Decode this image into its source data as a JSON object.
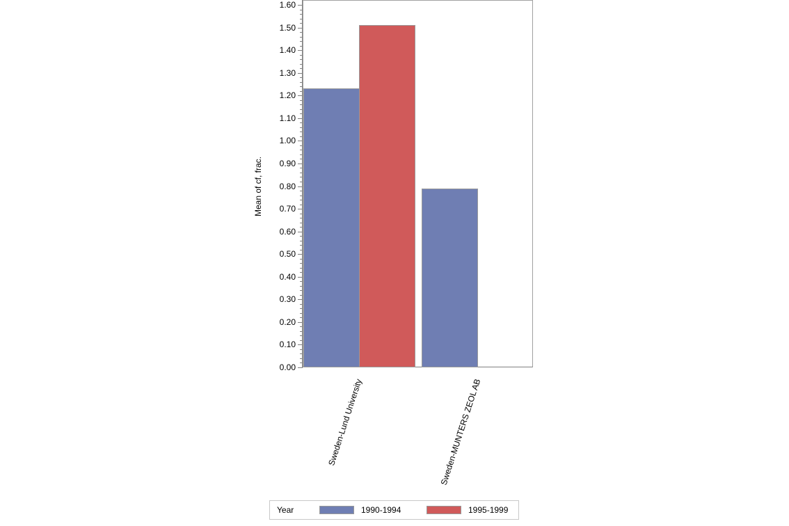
{
  "chart_data": {
    "type": "bar",
    "title": "",
    "xlabel": "",
    "ylabel": "Mean of cf, frac.",
    "ylim": [
      0,
      1.6
    ],
    "yticks": [
      "0.00",
      "0.10",
      "0.20",
      "0.30",
      "0.40",
      "0.50",
      "0.60",
      "0.70",
      "0.80",
      "0.90",
      "1.00",
      "1.10",
      "1.20",
      "1.30",
      "1.40",
      "1.50",
      "1.60"
    ],
    "categories": [
      "Sweden-Lund University",
      "Sweden-MUNTERS ZEOL AB"
    ],
    "series": [
      {
        "name": "1990-1994",
        "color": "#6f7eb3",
        "values": [
          1.23,
          0.79
        ]
      },
      {
        "name": "1995-1999",
        "color": "#d05a5a",
        "values": [
          1.51,
          null
        ]
      }
    ],
    "legend": {
      "title": "Year",
      "position": "bottom"
    },
    "grid": false
  }
}
